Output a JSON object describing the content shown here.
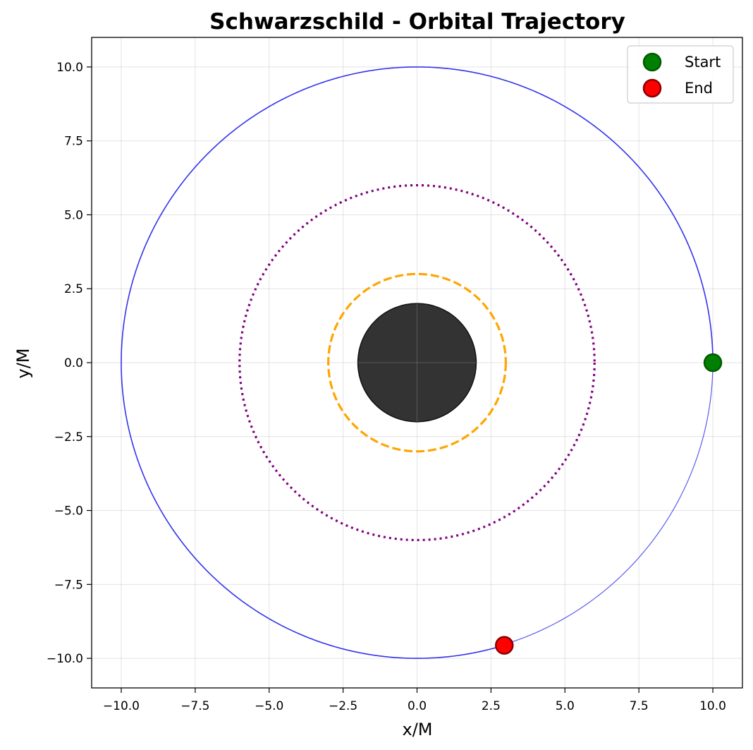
{
  "chart_data": {
    "type": "scatter",
    "title": "Schwarzschild - Orbital Trajectory",
    "xlabel": "x/M",
    "ylabel": "y/M",
    "xlim": [
      -11,
      11
    ],
    "ylim": [
      -11,
      11
    ],
    "xticks": [
      -10.0,
      -7.5,
      -5.0,
      -2.5,
      0.0,
      2.5,
      5.0,
      7.5,
      10.0
    ],
    "yticks": [
      -10.0,
      -7.5,
      -5.0,
      -2.5,
      0.0,
      2.5,
      5.0,
      7.5,
      10.0
    ],
    "xtick_labels": [
      "−10.0",
      "−7.5",
      "−5.0",
      "−2.5",
      "0.0",
      "2.5",
      "5.0",
      "7.5",
      "10.0"
    ],
    "ytick_labels": [
      "−10.0",
      "−7.5",
      "−5.0",
      "−2.5",
      "0.0",
      "2.5",
      "5.0",
      "7.5",
      "10.0"
    ],
    "grid": true,
    "legend_position": "top-right",
    "event_horizon": {
      "radius": 2,
      "color": "#333333"
    },
    "photon_sphere": {
      "radius": 3,
      "color": "#ffa500",
      "style": "dashed"
    },
    "isco": {
      "radius": 6,
      "color": "#800080",
      "style": "dotted"
    },
    "trajectory": {
      "radius": 10,
      "color": "#3333ee",
      "end_angle_deg": -72.8
    },
    "points": [
      {
        "name": "Start",
        "x": 10.0,
        "y": 0.0,
        "fill": "#008000",
        "edge": "#005a00"
      },
      {
        "name": "End",
        "x": 2.95,
        "y": -9.56,
        "fill": "#ff0000",
        "edge": "#8b0000"
      }
    ]
  }
}
